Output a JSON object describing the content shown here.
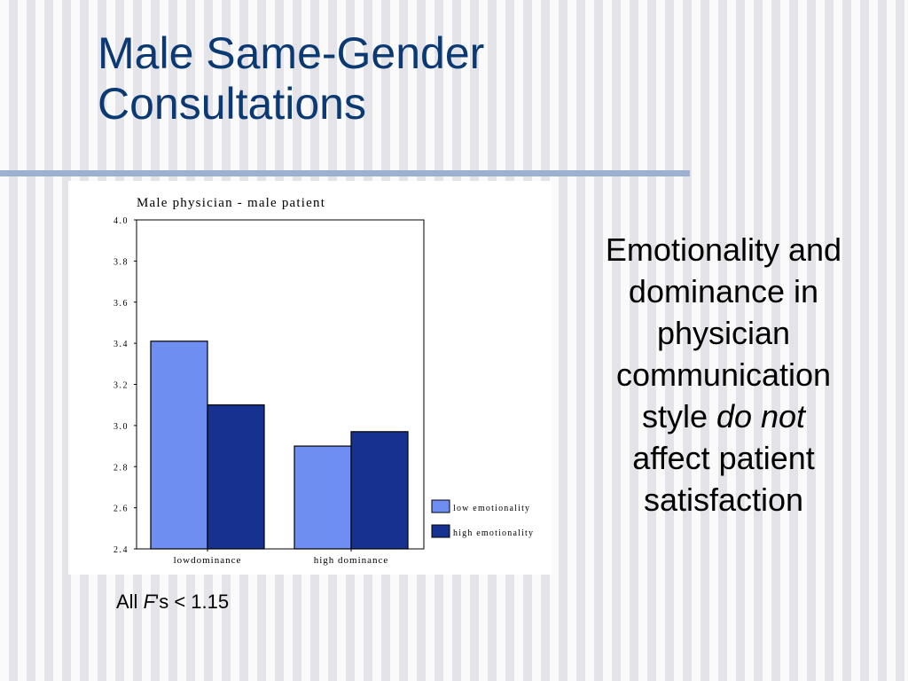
{
  "slide": {
    "title_line1": "Male Same-Gender",
    "title_line2": "Consultations",
    "title_color": "#0a3973"
  },
  "side_text": {
    "line1": "Emotionality and",
    "line2": "dominance in",
    "line3": "physician",
    "line4": "communication",
    "line5_prefix": "style ",
    "line5_emphasis": "do not",
    "line6": "affect patient",
    "line7": "satisfaction"
  },
  "footnote": {
    "prefix": "All ",
    "emphasis": "F",
    "suffix": "'s < 1.15"
  },
  "chart_data": {
    "type": "bar",
    "title": "Male physician - male patient",
    "categories": [
      "lowdominance",
      "high dominance"
    ],
    "series": [
      {
        "name": "low emotionality",
        "values": [
          3.41,
          2.9
        ],
        "color": "#6f8ef2"
      },
      {
        "name": "high emotionality",
        "values": [
          3.1,
          2.97
        ],
        "color": "#16318f"
      }
    ],
    "ylim": [
      2.4,
      4.0
    ],
    "yticks": [
      "2.4",
      "2.6",
      "2.8",
      "3.0",
      "3.2",
      "3.4",
      "3.6",
      "3.8",
      "4.0"
    ],
    "xlabel": "",
    "ylabel": "",
    "grid": false,
    "legend_position": "bottom-right"
  }
}
